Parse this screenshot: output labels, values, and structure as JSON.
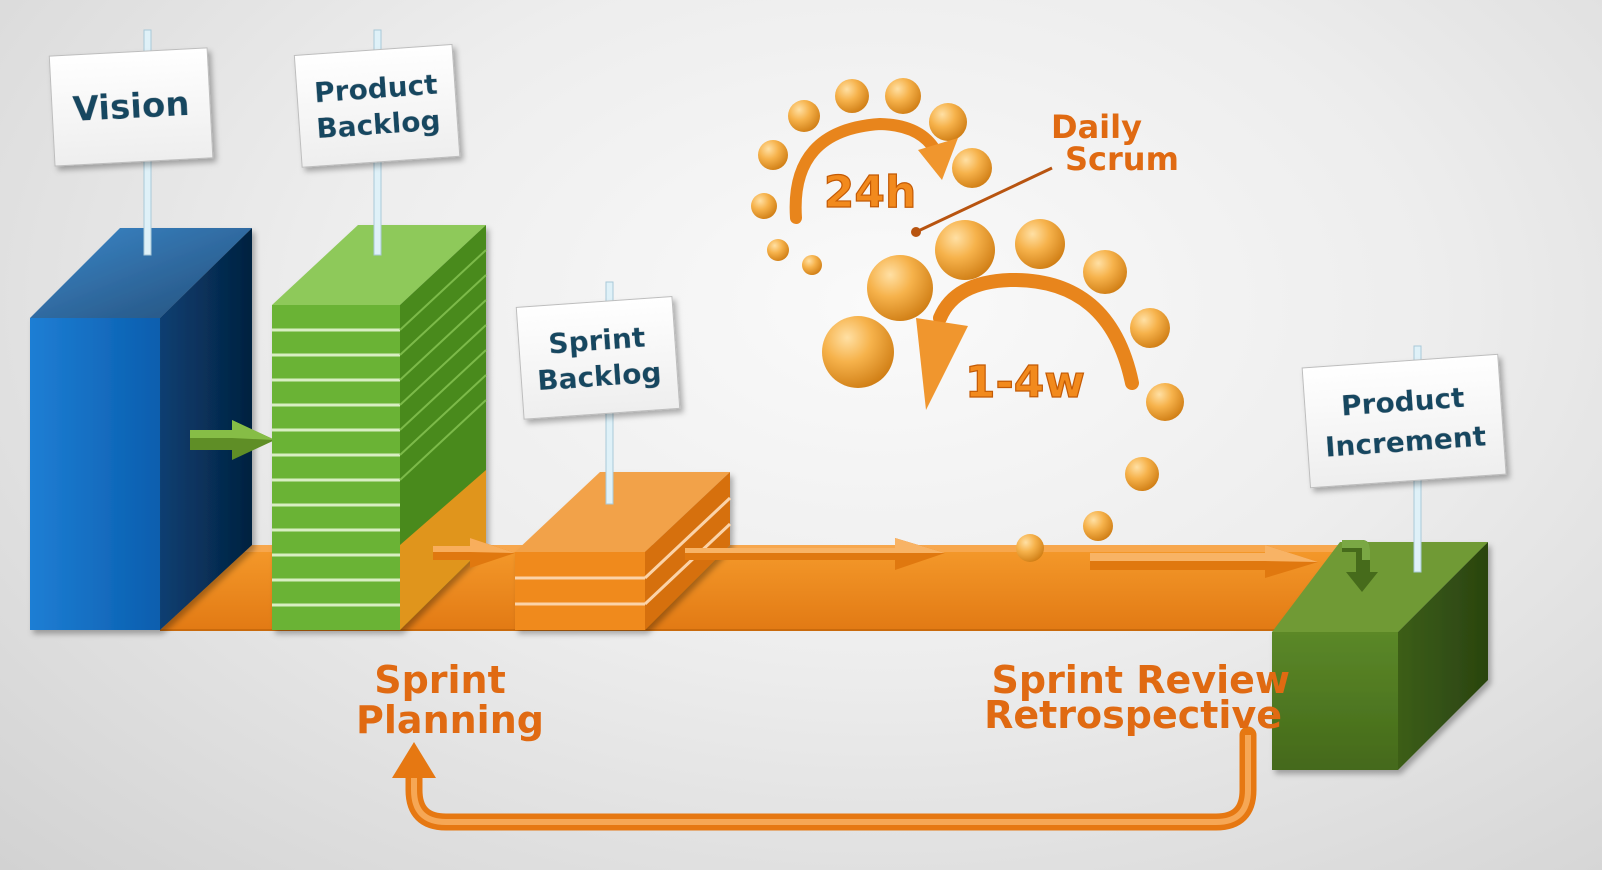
{
  "signs": {
    "vision": "Vision",
    "product_backlog_line1": "Product",
    "product_backlog_line2": "Backlog",
    "sprint_backlog_line1": "Sprint",
    "sprint_backlog_line2": "Backlog",
    "product_increment_line1": "Product",
    "product_increment_line2": "Increment"
  },
  "cycle": {
    "daily_label": "24h",
    "sprint_label": "1-4w",
    "daily_scrum_line1": "Daily",
    "daily_scrum_line2": "Scrum"
  },
  "events": {
    "sprint_planning_line1": "Sprint",
    "sprint_planning_line2": "Planning",
    "sprint_review_line1": "Sprint Review",
    "sprint_review_line2": "Retrospective"
  },
  "colors": {
    "vision_blue": "#0a63b5",
    "backlog_green": "#6ab336",
    "flow_orange": "#f08a1e",
    "increment_green": "#557f23",
    "sign_text": "#174760",
    "label_orange": "#e06a12"
  }
}
